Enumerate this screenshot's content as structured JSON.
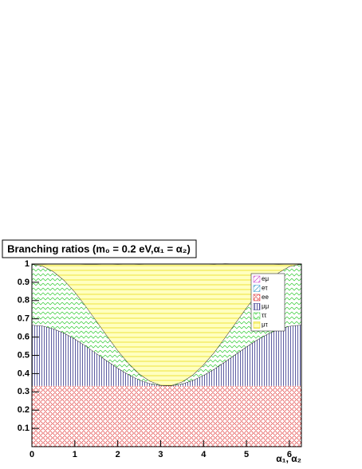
{
  "chart_data": {
    "type": "area",
    "stacked": true,
    "title": "Branching ratios (m₀ = 0.2 eV,α₁ = α₂)",
    "x_label": "α₁, α₂",
    "xlim": [
      0,
      6.28
    ],
    "ylim": [
      0,
      1
    ],
    "xticks": [
      0,
      1,
      2,
      3,
      4,
      5,
      6
    ],
    "yticks": [
      0.1,
      0.2,
      0.3,
      0.4,
      0.5,
      0.6,
      0.7,
      0.8,
      0.9,
      1
    ],
    "x": [
      0,
      0.25,
      0.5,
      0.75,
      1,
      1.25,
      1.5,
      1.75,
      2,
      2.25,
      2.5,
      2.75,
      3,
      3.25,
      3.5,
      3.75,
      4,
      4.25,
      4.5,
      4.75,
      5,
      5.25,
      5.5,
      5.75,
      6,
      6.25,
      6.28
    ],
    "series": [
      {
        "name": "eμ",
        "color": "#cc44cc",
        "hatch": "diagonal",
        "values": [
          0,
          0,
          0,
          0,
          0,
          0,
          0,
          0,
          0,
          0,
          0,
          0,
          0,
          0,
          0,
          0,
          0,
          0,
          0,
          0,
          0,
          0,
          0,
          0,
          0,
          0,
          0
        ]
      },
      {
        "name": "eτ",
        "color": "#3399cc",
        "hatch": "diagonal",
        "values": [
          0,
          0,
          0,
          0,
          0,
          0,
          0,
          0,
          0,
          0,
          0,
          0,
          0,
          0,
          0,
          0,
          0,
          0,
          0,
          0,
          0,
          0,
          0,
          0,
          0,
          0,
          0
        ]
      },
      {
        "name": "ee",
        "color": "#dd2222",
        "hatch": "circles",
        "values": [
          0.333,
          0.333,
          0.333,
          0.333,
          0.333,
          0.333,
          0.333,
          0.333,
          0.333,
          0.333,
          0.333,
          0.333,
          0.333,
          0.333,
          0.333,
          0.333,
          0.333,
          0.333,
          0.333,
          0.333,
          0.333,
          0.333,
          0.333,
          0.333,
          0.333,
          0.333,
          0.333
        ]
      },
      {
        "name": "μμ",
        "color": "#1a1a7a",
        "hatch": "vertical",
        "values": [
          0.333,
          0.328,
          0.313,
          0.289,
          0.257,
          0.219,
          0.178,
          0.137,
          0.097,
          0.062,
          0.033,
          0.013,
          0.002,
          0.001,
          0.011,
          0.03,
          0.058,
          0.092,
          0.132,
          0.173,
          0.214,
          0.252,
          0.285,
          0.31,
          0.327,
          0.333,
          0.333
        ]
      },
      {
        "name": "ττ",
        "color": "#33cc33",
        "hatch": "zigzag",
        "values": [
          0.333,
          0.328,
          0.313,
          0.289,
          0.257,
          0.219,
          0.178,
          0.137,
          0.097,
          0.062,
          0.033,
          0.013,
          0.002,
          0.001,
          0.011,
          0.03,
          0.058,
          0.092,
          0.132,
          0.173,
          0.214,
          0.252,
          0.285,
          0.31,
          0.327,
          0.333,
          0.333
        ]
      },
      {
        "name": "μτ",
        "color": "#e8d800",
        "hatch": "horizontal",
        "values": [
          0,
          0.01,
          0.041,
          0.089,
          0.153,
          0.228,
          0.31,
          0.393,
          0.472,
          0.543,
          0.6,
          0.641,
          0.663,
          0.665,
          0.645,
          0.607,
          0.551,
          0.482,
          0.404,
          0.321,
          0.239,
          0.163,
          0.097,
          0.046,
          0.013,
          0,
          0
        ]
      }
    ]
  }
}
